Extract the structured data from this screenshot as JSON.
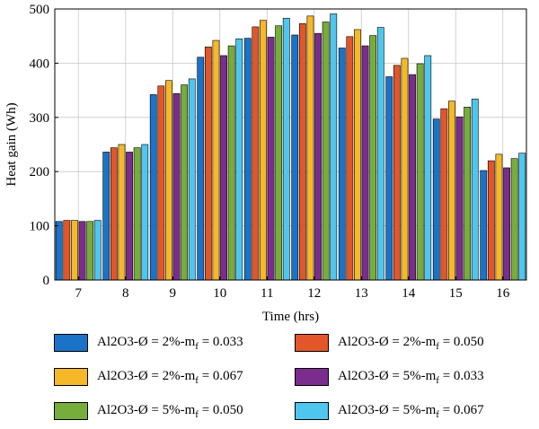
{
  "chart_data": {
    "type": "bar",
    "title": "",
    "xlabel": "Time (hrs)",
    "ylabel": "Heat gain (Wh)",
    "ylim": [
      0,
      500
    ],
    "yticks": [
      0,
      100,
      200,
      300,
      400,
      500
    ],
    "grid": true,
    "legend_position": "bottom",
    "categories": [
      "7",
      "8",
      "9",
      "10",
      "11",
      "12",
      "13",
      "14",
      "15",
      "16"
    ],
    "series": [
      {
        "name": "Al2O3-Ø = 2%-m_f = 0.033",
        "label_main": "Al2O3-Ø = 2%-m",
        "label_sub": "f",
        "label_tail": " = 0.033",
        "color": "#1a73c7",
        "values": [
          108,
          236,
          342,
          411,
          446,
          452,
          428,
          375,
          297,
          202
        ]
      },
      {
        "name": "Al2O3-Ø = 2%-m_f = 0.050",
        "label_main": "Al2O3-Ø = 2%-m",
        "label_sub": "f",
        "label_tail": " = 0.050",
        "color": "#e2562a",
        "values": [
          110,
          244,
          358,
          430,
          467,
          473,
          449,
          396,
          316,
          220
        ]
      },
      {
        "name": "Al2O3-Ø = 2%-m_f = 0.067",
        "label_main": "Al2O3-Ø = 2%-m",
        "label_sub": "f",
        "label_tail": " = 0.067",
        "color": "#f5b829",
        "values": [
          110,
          250,
          368,
          442,
          479,
          487,
          462,
          409,
          330,
          232
        ]
      },
      {
        "name": "Al2O3-Ø = 5%-m_f = 0.033",
        "label_main": "Al2O3-Ø = 5%-m",
        "label_sub": "f",
        "label_tail": " = 0.033",
        "color": "#7b2d8e",
        "values": [
          108,
          236,
          344,
          414,
          448,
          455,
          432,
          379,
          301,
          207
        ]
      },
      {
        "name": "Al2O3-Ø = 5%-m_f = 0.050",
        "label_main": "Al2O3-Ø = 5%-m",
        "label_sub": "f",
        "label_tail": " = 0.050",
        "color": "#77ad3a",
        "values": [
          108,
          244,
          360,
          432,
          469,
          476,
          451,
          399,
          319,
          224
        ]
      },
      {
        "name": "Al2O3-Ø = 5%-m_f = 0.067",
        "label_main": "Al2O3-Ø = 5%-m",
        "label_sub": "f",
        "label_tail": " = 0.067",
        "color": "#4ec6ee",
        "values": [
          110,
          250,
          371,
          445,
          483,
          491,
          466,
          414,
          334,
          234
        ]
      }
    ]
  }
}
